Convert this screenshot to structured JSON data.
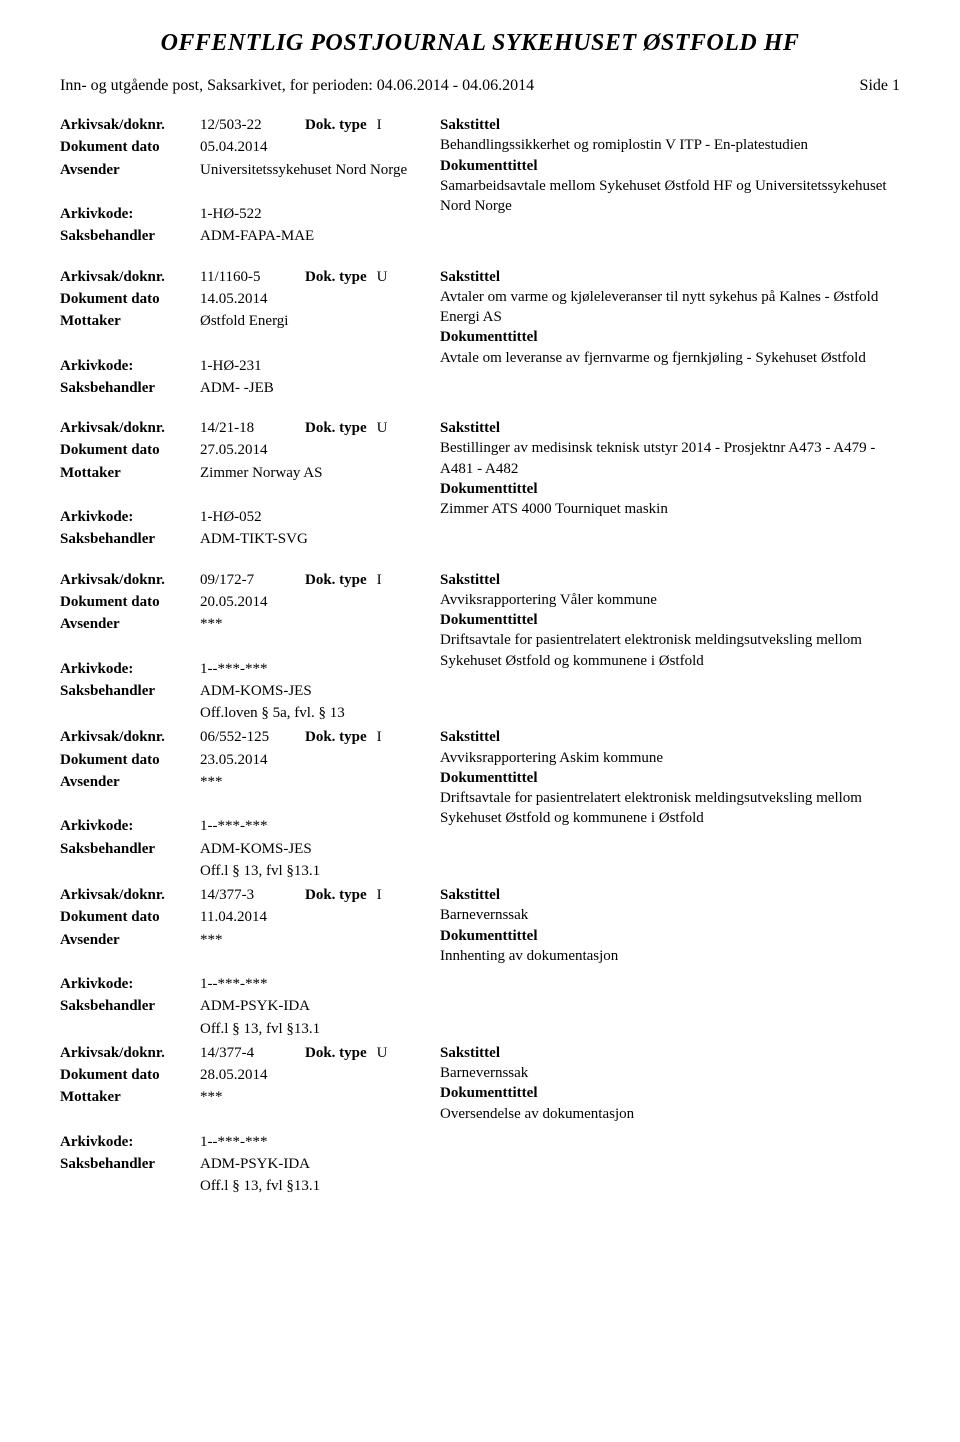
{
  "header": {
    "title": "OFFENTLIG POSTJOURNAL SYKEHUSET ØSTFOLD HF",
    "subtitle": "Inn- og utgående post, Saksarkivet, for perioden: 04.06.2014 - 04.06.2014",
    "page": "Side 1"
  },
  "labels": {
    "arkivsak": "Arkivsak/doknr.",
    "dokdato": "Dokument dato",
    "avsender": "Avsender",
    "mottaker": "Mottaker",
    "arkivkode": "Arkivkode:",
    "saksbehandler": "Saksbehandler",
    "doktype": "Dok. type",
    "sakstittel": "Sakstittel",
    "dokumenttittel": "Dokumenttittel"
  },
  "entries": [
    {
      "doknr": "12/503-22",
      "doktype": "I",
      "dato": "05.04.2014",
      "party_label": "Avsender",
      "party": "Universitetssykehuset Nord Norge",
      "arkivkode": "1-HØ-522",
      "saksbehandler": "ADM-FAPA-MAE",
      "unntak": "",
      "sakstittel": "Behandlingssikkerhet og romiplostin V ITP - En-platestudien",
      "doktittel": "Samarbeidsavtale mellom Sykehuset Østfold HF og Universitetssykehuset Nord Norge"
    },
    {
      "doknr": "11/1160-5",
      "doktype": "U",
      "dato": "14.05.2014",
      "party_label": "Mottaker",
      "party": "Østfold Energi",
      "arkivkode": "1-HØ-231",
      "saksbehandler": "ADM- -JEB",
      "unntak": "",
      "sakstittel": "Avtaler om varme og kjøleleveranser til nytt sykehus på Kalnes - Østfold Energi AS",
      "doktittel": "Avtale om leveranse av fjernvarme og fjernkjøling - Sykehuset Østfold"
    },
    {
      "doknr": "14/21-18",
      "doktype": "U",
      "dato": "27.05.2014",
      "party_label": "Mottaker",
      "party": "Zimmer Norway AS",
      "arkivkode": "1-HØ-052",
      "saksbehandler": "ADM-TIKT-SVG",
      "unntak": "",
      "sakstittel": "Bestillinger av medisinsk teknisk utstyr 2014 - Prosjektnr A473 - A479 - A481 - A482",
      "doktittel": "Zimmer ATS 4000 Tourniquet maskin"
    },
    {
      "doknr": "09/172-7",
      "doktype": "I",
      "dato": "20.05.2014",
      "party_label": "Avsender",
      "party": "***",
      "arkivkode": "1--***-***",
      "saksbehandler": "ADM-KOMS-JES",
      "unntak": "Off.loven § 5a, fvl. § 13",
      "sakstittel": "Avviksrapportering  Våler kommune",
      "doktittel": "Driftsavtale for pasientrelatert elektronisk meldingsutveksling mellom Sykehuset Østfold og kommunene i Østfold"
    },
    {
      "doknr": "06/552-125",
      "doktype": "I",
      "dato": "23.05.2014",
      "party_label": "Avsender",
      "party": "***",
      "arkivkode": "1--***-***",
      "saksbehandler": "ADM-KOMS-JES",
      "unntak": "Off.l § 13, fvl §13.1",
      "sakstittel": "Avviksrapportering Askim kommune",
      "doktittel": "Driftsavtale for pasientrelatert elektronisk meldingsutveksling mellom Sykehuset Østfold og kommunene i Østfold"
    },
    {
      "doknr": "14/377-3",
      "doktype": "I",
      "dato": "11.04.2014",
      "party_label": "Avsender",
      "party": "***",
      "arkivkode": "1--***-***",
      "saksbehandler": "ADM-PSYK-IDA",
      "unntak": "Off.l § 13, fvl §13.1",
      "sakstittel": "Barnevernssak",
      "doktittel": "Innhenting av dokumentasjon"
    },
    {
      "doknr": "14/377-4",
      "doktype": "U",
      "dato": "28.05.2014",
      "party_label": "Mottaker",
      "party": "***",
      "arkivkode": "1--***-***",
      "saksbehandler": "ADM-PSYK-IDA",
      "unntak": "Off.l § 13, fvl §13.1",
      "sakstittel": "Barnevernssak",
      "doktittel": "Oversendelse av dokumentasjon"
    }
  ]
}
